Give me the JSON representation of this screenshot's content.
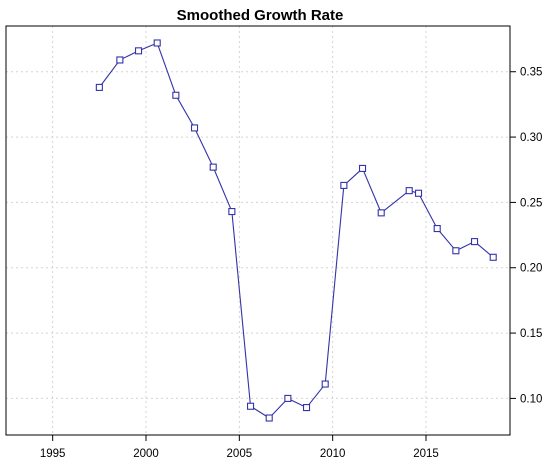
{
  "chart_data": {
    "type": "line",
    "title": "Smoothed Growth Rate",
    "xlabel": "",
    "ylabel": "",
    "xlim": [
      1992.5,
      2019.5
    ],
    "ylim": [
      0.072,
      0.385
    ],
    "x_ticks": [
      1995,
      2000,
      2005,
      2010,
      2015
    ],
    "y_ticks": [
      0.1,
      0.15,
      0.2,
      0.25,
      0.3,
      0.35
    ],
    "x_tick_labels": [
      "1995",
      "2000",
      "2005",
      "2010",
      "2015"
    ],
    "y_tick_labels": [
      "0.10",
      "0.15",
      "0.20",
      "0.25",
      "0.30",
      "0.35"
    ],
    "y_axis_side": "right",
    "grid": true,
    "legend": "none",
    "line_color": "#3333aa",
    "marker": "open-square",
    "series": [
      {
        "x": [
          1997.5,
          1998.6,
          1999.6,
          2000.6,
          2001.6,
          2002.6,
          2003.6,
          2004.6,
          2005.6,
          2006.6,
          2007.6,
          2008.6,
          2009.6,
          2010.6,
          2011.6,
          2012.6,
          2014.1,
          2014.6,
          2015.6,
          2016.6,
          2017.6,
          2018.6
        ],
        "values": [
          0.338,
          0.359,
          0.366,
          0.372,
          0.332,
          0.307,
          0.277,
          0.243,
          0.094,
          0.085,
          0.1,
          0.093,
          0.111,
          0.263,
          0.276,
          0.242,
          0.259,
          0.257,
          0.23,
          0.213,
          0.22,
          0.208
        ]
      }
    ]
  }
}
